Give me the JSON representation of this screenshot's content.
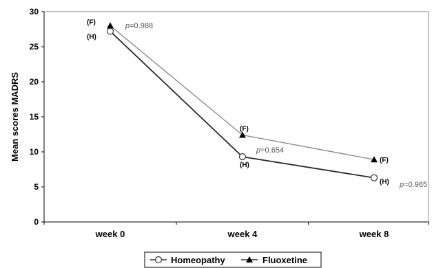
{
  "chart_data": {
    "type": "line",
    "categories": [
      "week 0",
      "week 4",
      "week 8"
    ],
    "ylabel": "Mean scores MADRS",
    "ylim": [
      0,
      30
    ],
    "yticks": [
      0,
      5,
      10,
      15,
      20,
      25,
      30
    ],
    "grid": false,
    "legend_position": "bottom",
    "series": [
      {
        "name": "Homeopathy",
        "marker": "circle-open",
        "color": "#2b2b2b",
        "point_label": "(H)",
        "values": [
          27.2,
          9.3,
          6.3
        ]
      },
      {
        "name": "Fluoxetine",
        "marker": "triangle-filled",
        "color": "#8c8c8c",
        "point_label": "(F)",
        "values": [
          28.0,
          12.4,
          8.9
        ]
      }
    ],
    "annotations": [
      {
        "italic": "p",
        "text": "=0.988",
        "category": 0
      },
      {
        "italic": "p",
        "text": "=0.654",
        "category": 1
      },
      {
        "italic": "p",
        "text": "=0.965",
        "category": 2
      }
    ]
  }
}
